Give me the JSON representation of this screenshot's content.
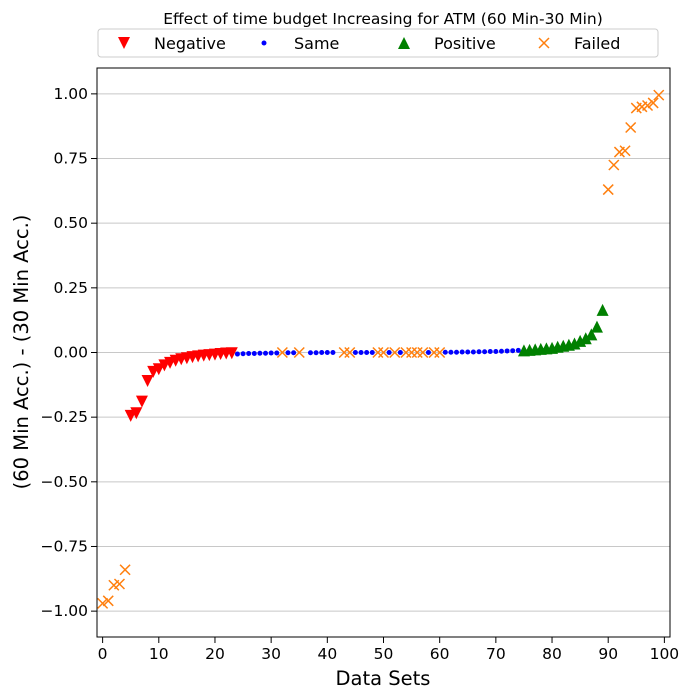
{
  "chart_data": {
    "type": "scatter",
    "title": "Effect of time budget Increasing for ATM (60 Min-30 Min)",
    "xlabel": "Data Sets",
    "ylabel": "(60 Min Acc.) - (30 Min Acc.)",
    "xlim": [
      -1,
      101
    ],
    "ylim": [
      -1.1,
      1.1
    ],
    "xticks": [
      0,
      10,
      20,
      30,
      40,
      50,
      60,
      70,
      80,
      90,
      100
    ],
    "xtick_labels": [
      "0",
      "10",
      "20",
      "30",
      "40",
      "50",
      "60",
      "70",
      "80",
      "90",
      "100"
    ],
    "yticks": [
      1.0,
      0.75,
      0.5,
      0.25,
      0.0,
      -0.25,
      -0.5,
      -0.75,
      -1.0
    ],
    "ytick_labels": [
      "1.00",
      "0.75",
      "0.50",
      "0.25",
      "0.00",
      "−0.25",
      "−0.50",
      "−0.75",
      "−1.00"
    ],
    "grid": "horizontal",
    "legend_placement": "top-center",
    "series": [
      {
        "name": "Negative",
        "marker": "triangle-down",
        "color": "#ff0000",
        "x": [
          5,
          6,
          7,
          8,
          9,
          10,
          11,
          12,
          13,
          14,
          15,
          16,
          17,
          18,
          19,
          20,
          21,
          22,
          23
        ],
        "y": [
          -0.245,
          -0.235,
          -0.19,
          -0.11,
          -0.075,
          -0.065,
          -0.05,
          -0.04,
          -0.032,
          -0.026,
          -0.022,
          -0.018,
          -0.015,
          -0.012,
          -0.01,
          -0.008,
          -0.006,
          -0.004,
          -0.003
        ]
      },
      {
        "name": "Same",
        "marker": "circle",
        "color": "#0000ff",
        "x": [
          24,
          25,
          26,
          27,
          28,
          29,
          30,
          31,
          33,
          34,
          37,
          38,
          39,
          40,
          41,
          45,
          46,
          47,
          48,
          51,
          53,
          58,
          61,
          62,
          63,
          64,
          65,
          66,
          67,
          68,
          69,
          70,
          71,
          72,
          73,
          74
        ],
        "y": [
          -0.006,
          -0.005,
          -0.004,
          -0.004,
          -0.003,
          -0.003,
          -0.002,
          -0.002,
          -0.001,
          -0.001,
          -0.001,
          -0.001,
          0.0,
          0.0,
          0.0,
          0.0,
          0.0,
          0.0,
          0.0,
          0.0,
          0.0,
          0.0,
          0.001,
          0.001,
          0.001,
          0.002,
          0.002,
          0.002,
          0.003,
          0.003,
          0.004,
          0.004,
          0.005,
          0.006,
          0.007,
          0.008
        ]
      },
      {
        "name": "Positive",
        "marker": "triangle-up",
        "color": "#008000",
        "x": [
          75,
          76,
          77,
          78,
          79,
          80,
          81,
          82,
          83,
          84,
          85,
          86,
          87,
          88,
          89
        ],
        "y": [
          0.008,
          0.01,
          0.012,
          0.014,
          0.016,
          0.018,
          0.022,
          0.026,
          0.03,
          0.035,
          0.045,
          0.055,
          0.07,
          0.1,
          0.165
        ]
      },
      {
        "name": "Failed",
        "marker": "x",
        "color": "#ff7f0e",
        "x": [
          0,
          1,
          2,
          3,
          4,
          32,
          35,
          43,
          44,
          49,
          50,
          52,
          54,
          55,
          56,
          57,
          59,
          60,
          90,
          91,
          92,
          93,
          94,
          95,
          96,
          97,
          98,
          99
        ],
        "y": [
          -0.97,
          -0.96,
          -0.9,
          -0.895,
          -0.84,
          0.0,
          0.0,
          0.0,
          0.0,
          0.0,
          0.0,
          0.0,
          0.0,
          0.0,
          0.0,
          0.0,
          0.0,
          0.0,
          0.63,
          0.725,
          0.775,
          0.78,
          0.87,
          0.945,
          0.95,
          0.955,
          0.965,
          0.995
        ]
      }
    ]
  }
}
